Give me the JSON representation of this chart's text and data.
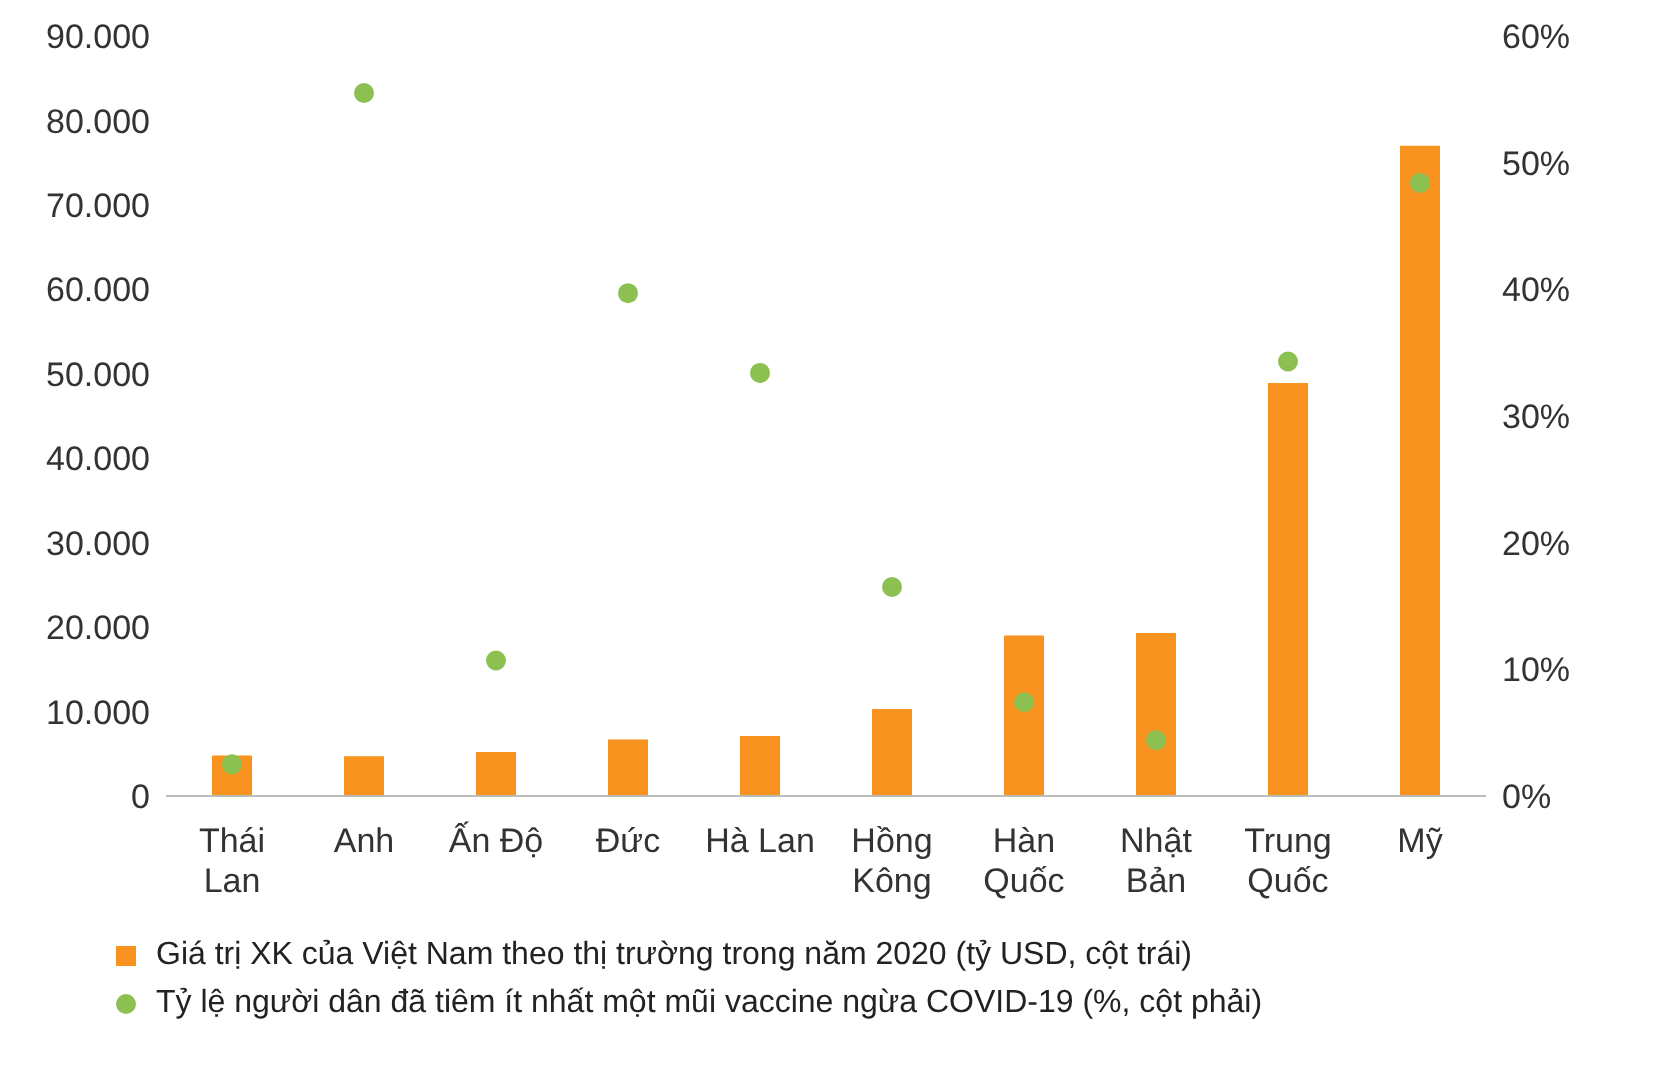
{
  "chart_data": {
    "type": "bar",
    "categories": [
      "Thái Lan",
      "Anh",
      "Ấn Độ",
      "Đức",
      "Hà Lan",
      "Hồng Kông",
      "Hàn Quốc",
      "Nhật Bản",
      "Trung Quốc",
      "Mỹ"
    ],
    "series": [
      {
        "name": "Giá trị XK của Việt Nam theo thị trường trong năm 2020 (tỷ USD, cột trái)",
        "color": "#f7931e",
        "values": [
          4800,
          4700,
          5200,
          6700,
          7100,
          10300,
          19000,
          19300,
          48900,
          77000
        ]
      },
      {
        "name": "Tỷ lệ người dân đã tiêm ít nhất một mũi vaccine ngừa COVID-19 (%, cột phải)",
        "type": "scatter",
        "axis": "y2",
        "color": "#8cc152",
        "marker": "circle",
        "values": [
          2.5,
          55.5,
          10.7,
          39.7,
          33.4,
          16.5,
          7.4,
          4.4,
          34.3,
          48.4
        ]
      }
    ],
    "ylim": [
      0,
      90000
    ],
    "yticks": [
      {
        "value": 0,
        "label": "0"
      },
      {
        "value": 10000,
        "label": "10.000"
      },
      {
        "value": 20000,
        "label": "20.000"
      },
      {
        "value": 30000,
        "label": "30.000"
      },
      {
        "value": 40000,
        "label": "40.000"
      },
      {
        "value": 50000,
        "label": "50.000"
      },
      {
        "value": 60000,
        "label": "60.000"
      },
      {
        "value": 70000,
        "label": "70.000"
      },
      {
        "value": 80000,
        "label": "80.000"
      },
      {
        "value": 90000,
        "label": "90.000"
      }
    ],
    "y2lim": [
      0,
      60
    ],
    "y2ticks": [
      {
        "value": 0,
        "label": "0%"
      },
      {
        "value": 10,
        "label": "10%"
      },
      {
        "value": 20,
        "label": "20%"
      },
      {
        "value": 30,
        "label": "30%"
      },
      {
        "value": 40,
        "label": "40%"
      },
      {
        "value": 50,
        "label": "50%"
      },
      {
        "value": 60,
        "label": "60%"
      }
    ],
    "grid": false,
    "legend": "bottom"
  }
}
